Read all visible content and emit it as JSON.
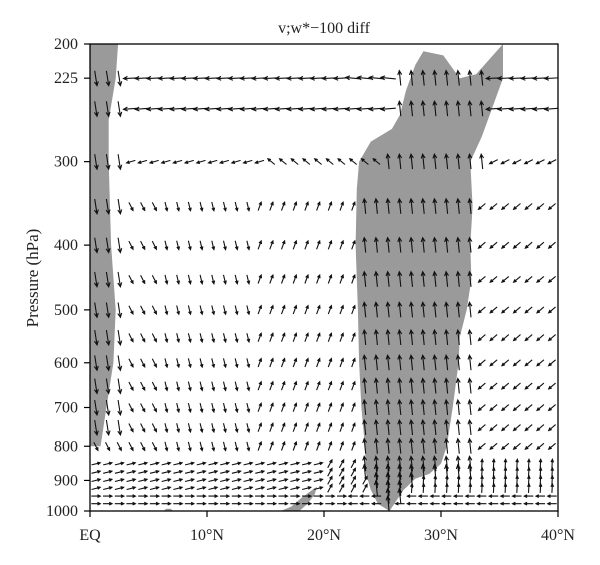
{
  "chart_data": {
    "type": "vector-field",
    "title": "v;w*−100 diff",
    "xlabel": "",
    "ylabel": "Pressure (hPa)",
    "xlim": [
      0,
      40
    ],
    "ylim": [
      1000,
      200
    ],
    "y_scale": "log",
    "x_ticks": [
      {
        "value": 0,
        "label": "EQ"
      },
      {
        "value": 10,
        "label": "10°N"
      },
      {
        "value": 20,
        "label": "20°N"
      },
      {
        "value": 30,
        "label": "30°N"
      },
      {
        "value": 40,
        "label": "40°N"
      }
    ],
    "y_ticks": [
      {
        "value": 200,
        "label": "200"
      },
      {
        "value": 225,
        "label": "225"
      },
      {
        "value": 300,
        "label": "300"
      },
      {
        "value": 400,
        "label": "400"
      },
      {
        "value": 500,
        "label": "500"
      },
      {
        "value": 600,
        "label": "600"
      },
      {
        "value": 700,
        "label": "700"
      },
      {
        "value": 800,
        "label": "800"
      },
      {
        "value": 900,
        "label": "900"
      },
      {
        "value": 1000,
        "label": "1000"
      }
    ],
    "vector_levels": [
      225,
      250,
      300,
      350,
      400,
      450,
      500,
      550,
      600,
      650,
      700,
      750,
      800,
      850,
      875,
      900,
      925,
      950,
      975
    ],
    "vector_x_range": [
      0.5,
      39.5
    ],
    "vector_x_step": 1.0,
    "shaded_regions": [
      {
        "name": "shading-left",
        "polygon": [
          [
            0,
            200
          ],
          [
            2.4,
            200
          ],
          [
            2.2,
            225
          ],
          [
            1.6,
            260
          ],
          [
            1.6,
            300
          ],
          [
            1.8,
            400
          ],
          [
            2.2,
            500
          ],
          [
            2.0,
            600
          ],
          [
            1.4,
            700
          ],
          [
            1.0,
            780
          ],
          [
            0.9,
            800
          ],
          [
            0,
            800
          ]
        ]
      },
      {
        "name": "shading-right",
        "polygon": [
          [
            25.6,
            1000
          ],
          [
            24.6,
            975
          ],
          [
            24.0,
            930
          ],
          [
            23.6,
            880
          ],
          [
            23.5,
            800
          ],
          [
            23.2,
            700
          ],
          [
            23.0,
            600
          ],
          [
            22.9,
            500
          ],
          [
            22.7,
            400
          ],
          [
            22.8,
            330
          ],
          [
            23.0,
            300
          ],
          [
            24.0,
            280
          ],
          [
            25.8,
            268
          ],
          [
            26.5,
            255
          ],
          [
            27.0,
            235
          ],
          [
            27.8,
            215
          ],
          [
            28.5,
            205
          ],
          [
            30.2,
            208
          ],
          [
            31.6,
            225
          ],
          [
            33.0,
            222
          ],
          [
            35.3,
            200
          ],
          [
            35.3,
            225
          ],
          [
            33.5,
            275
          ],
          [
            32.5,
            300
          ],
          [
            32.7,
            350
          ],
          [
            32.5,
            400
          ],
          [
            32.6,
            450
          ],
          [
            32.2,
            500
          ],
          [
            31.6,
            550
          ],
          [
            31.5,
            600
          ],
          [
            31.0,
            700
          ],
          [
            30.5,
            800
          ],
          [
            30.0,
            850
          ],
          [
            29.0,
            880
          ],
          [
            27.8,
            895
          ],
          [
            26.8,
            930
          ],
          [
            25.6,
            1000
          ]
        ]
      },
      {
        "name": "shading-bottom-blob",
        "polygon": [
          [
            16.3,
            1000
          ],
          [
            17.2,
            985
          ],
          [
            18.1,
            955
          ],
          [
            18.8,
            935
          ],
          [
            19.4,
            920
          ],
          [
            19.2,
            945
          ],
          [
            18.6,
            975
          ],
          [
            17.9,
            1000
          ]
        ]
      },
      {
        "name": "shading-bottom-small",
        "polygon": [
          [
            6.3,
            1000
          ],
          [
            6.5,
            992
          ],
          [
            6.9,
            992
          ],
          [
            7.1,
            1000
          ]
        ]
      }
    ]
  }
}
